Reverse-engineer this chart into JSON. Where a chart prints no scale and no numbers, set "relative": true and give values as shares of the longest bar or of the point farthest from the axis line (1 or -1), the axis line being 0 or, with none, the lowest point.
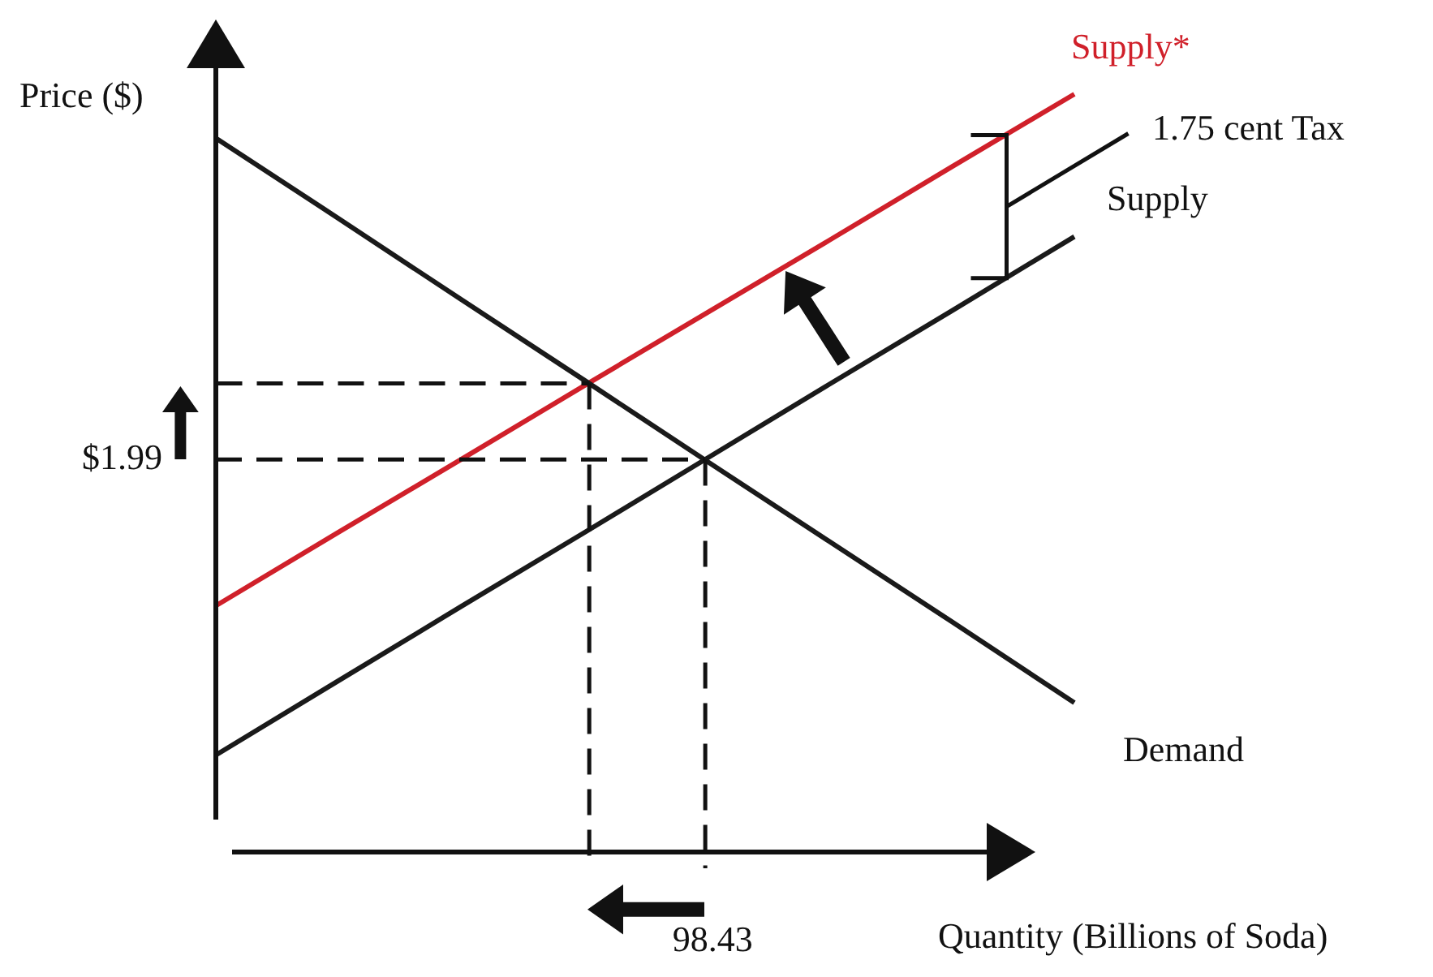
{
  "chart_data": {
    "type": "line",
    "relative": true,
    "xlabel": "Quantity (Billions of Soda)",
    "ylabel": "Price ($)",
    "categories": [
      null,
      null,
      null,
      null,
      null,
      null,
      null,
      null
    ],
    "series": [
      {
        "name": "Demand",
        "color": "#1a1a1a",
        "values": [
          0.942,
          0.836,
          0.729,
          0.623,
          0.516,
          0.41,
          0.304,
          0.197
        ]
      },
      {
        "name": "Supply",
        "color": "#1a1a1a",
        "values": [
          0.128,
          0.226,
          0.324,
          0.421,
          0.519,
          0.617,
          0.714,
          0.812
        ]
      },
      {
        "name": "Supply*",
        "color": "#d0202a",
        "values": [
          0.325,
          0.422,
          0.518,
          0.615,
          0.711,
          0.807,
          0.904,
          1.0
        ]
      }
    ],
    "ref_lines": [
      {
        "axis": "y",
        "value": 0.518,
        "line_style": "dashed"
      }
    ],
    "annotations": [
      "$1.99",
      "98.43",
      "1.75 cent Tax"
    ],
    "marker": "none",
    "line_style": "solid",
    "legend": false
  }
}
